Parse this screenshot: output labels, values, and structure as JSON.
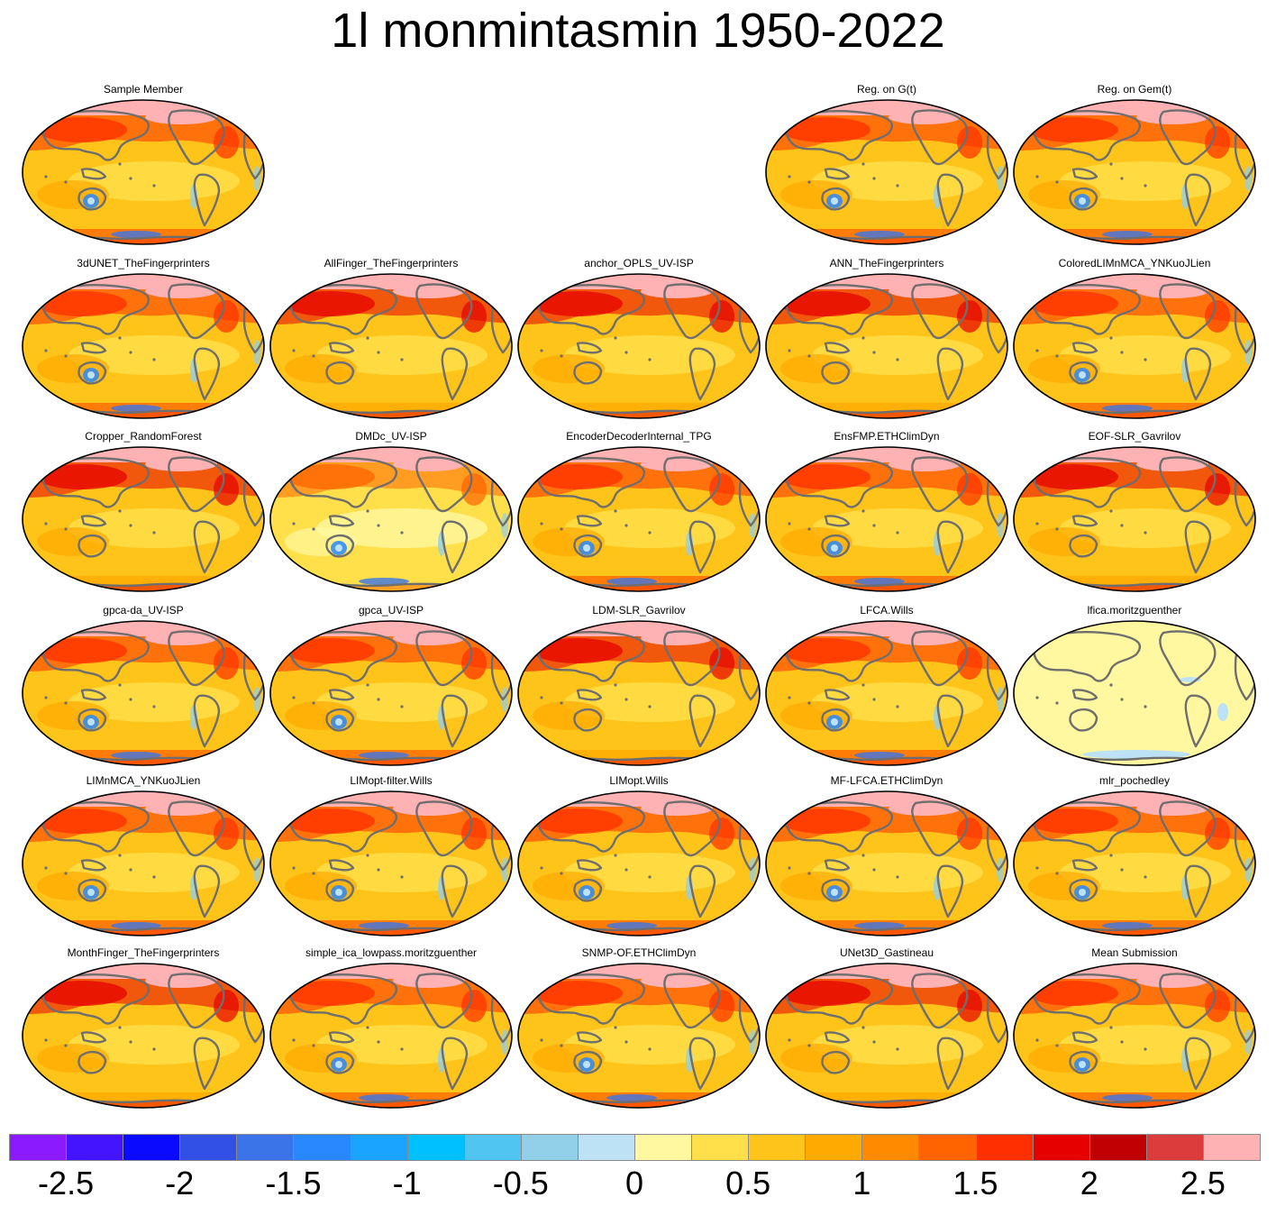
{
  "title": "1l monmintasmin 1950-2022",
  "panels": [
    {
      "label": "Sample Member",
      "style": "member"
    },
    null,
    null,
    {
      "label": "Reg. on G(t)",
      "style": "member"
    },
    {
      "label": "Reg. on Gem(t)",
      "style": "member"
    },
    {
      "label": "3dUNET_TheFingerprinters",
      "style": "member"
    },
    {
      "label": "AllFinger_TheFingerprinters",
      "style": "smooth-warm"
    },
    {
      "label": "anchor_OPLS_UV-ISP",
      "style": "smooth-warm"
    },
    {
      "label": "ANN_TheFingerprinters",
      "style": "smooth-warm"
    },
    {
      "label": "ColoredLIMnMCA_YNKuoJLien",
      "style": "member"
    },
    {
      "label": "Cropper_RandomForest",
      "style": "smooth-warm"
    },
    {
      "label": "DMDc_UV-ISP",
      "style": "pale"
    },
    {
      "label": "EncoderDecoderInternal_TPG",
      "style": "member"
    },
    {
      "label": "EnsFMP.ETHClimDyn",
      "style": "member"
    },
    {
      "label": "EOF-SLR_Gavrilov",
      "style": "smooth-warm"
    },
    {
      "label": "gpca-da_UV-ISP",
      "style": "member"
    },
    {
      "label": "gpca_UV-ISP",
      "style": "member"
    },
    {
      "label": "LDM-SLR_Gavrilov",
      "style": "smooth-warm"
    },
    {
      "label": "LFCA.Wills",
      "style": "member"
    },
    {
      "label": "lfica.moritzguenther",
      "style": "flat"
    },
    {
      "label": "LIMnMCA_YNKuoJLien",
      "style": "member"
    },
    {
      "label": "LIMopt-filter.Wills",
      "style": "member"
    },
    {
      "label": "LIMopt.Wills",
      "style": "member"
    },
    {
      "label": "MF-LFCA.ETHClimDyn",
      "style": "member"
    },
    {
      "label": "mlr_pochedley",
      "style": "member"
    },
    {
      "label": "MonthFinger_TheFingerprinters",
      "style": "smooth-warm"
    },
    {
      "label": "simple_ica_lowpass.moritzguenther",
      "style": "member"
    },
    {
      "label": "SNMP-OF.ETHClimDyn",
      "style": "member"
    },
    {
      "label": "UNet3D_Gastineau",
      "style": "smooth-warm"
    },
    {
      "label": "Mean Submission",
      "style": "member"
    }
  ],
  "colorbar": {
    "colors": [
      "#8c1aff",
      "#4414ff",
      "#0a0aff",
      "#3250e6",
      "#3a74e8",
      "#2a88ff",
      "#1aa3ff",
      "#00c0ff",
      "#50c5f2",
      "#92d0ea",
      "#bde2f5",
      "#fff8a0",
      "#ffe04a",
      "#ffc41a",
      "#ffaa00",
      "#ff8a00",
      "#ff6400",
      "#ff2f00",
      "#e60000",
      "#c00000",
      "#dc3c3c",
      "#ffb2b4"
    ],
    "ticks": [
      "-2.5",
      "-2",
      "-1.5",
      "-1",
      "-0.5",
      "0",
      "0.5",
      "1",
      "1.5",
      "2",
      "2.5"
    ]
  }
}
